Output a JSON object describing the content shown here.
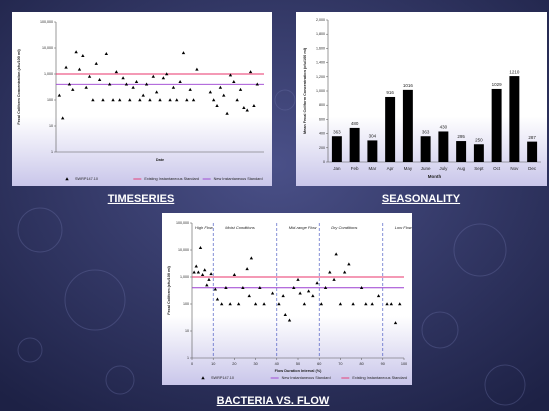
{
  "chart_data": [
    {
      "type": "scatter",
      "caption": "TIMESERIES",
      "xlabel": "Date",
      "ylabel": "Fecal Coliform Concentration (cfu/100 ml)",
      "log_y": true,
      "ylim": [
        1,
        100000
      ],
      "yticks": [
        1,
        10,
        100,
        {
          "value": 1000,
          "label": "1,000"
        },
        {
          "value": 10000,
          "label": "10,000"
        },
        {
          "value": 100000,
          "label": "100,000"
        }
      ],
      "xlim": [
        0,
        62
      ],
      "series": [
        {
          "name": "SWRP147.10",
          "color": "#000000",
          "x": [
            1,
            2,
            3,
            4,
            5,
            6,
            7,
            8,
            9,
            10,
            11,
            12,
            13,
            14,
            15,
            16,
            17,
            18,
            19,
            20,
            21,
            22,
            23,
            24,
            25,
            26,
            27,
            28,
            29,
            30,
            31,
            32,
            33,
            34,
            35,
            36,
            37,
            38,
            39,
            40,
            41,
            42,
            46,
            47,
            48,
            49,
            50,
            51,
            52,
            53,
            54,
            55,
            56,
            57,
            58,
            59,
            60
          ],
          "values": [
            150,
            20,
            1800,
            400,
            250,
            7000,
            1500,
            5000,
            300,
            800,
            100,
            2500,
            600,
            100,
            6000,
            400,
            100,
            1200,
            100,
            700,
            400,
            100,
            300,
            500,
            100,
            150,
            400,
            100,
            800,
            200,
            100,
            700,
            1000,
            100,
            300,
            100,
            500,
            6500,
            100,
            250,
            100,
            1500,
            200,
            100,
            60,
            300,
            150,
            30,
            900,
            500,
            100,
            250,
            50,
            40,
            1200,
            60,
            400
          ]
        }
      ],
      "reference_lines": [
        {
          "name": "Existing Instantaneous Standard",
          "color": "#e8336b",
          "value": 1000
        },
        {
          "name": "New Instantaneous Standard",
          "color": "#9b3fd1",
          "value": 400
        }
      ]
    },
    {
      "type": "bar",
      "caption": "SEASONALITY",
      "xlabel": "Month",
      "ylabel": "Mean Fecal Coliform Concentration (cfu/100 ml)",
      "categories": [
        "Jan",
        "Feb",
        "Mar",
        "Apr",
        "May",
        "June",
        "July",
        "Aug",
        "Sept",
        "Oct",
        "Nov",
        "Dec"
      ],
      "values": [
        363,
        480,
        304,
        916,
        1016,
        363,
        430,
        295,
        250,
        1029,
        1210,
        287
      ],
      "color": "#000000",
      "ylim": [
        0,
        2000
      ],
      "yticks": [
        0,
        200,
        400,
        600,
        800,
        {
          "value": 1000,
          "label": "1,000"
        },
        {
          "value": 1200,
          "label": "1,200"
        },
        {
          "value": 1400,
          "label": "1,400"
        },
        {
          "value": 1600,
          "label": "1,600"
        },
        {
          "value": 1800,
          "label": "1,800"
        },
        {
          "value": 2000,
          "label": "2,000"
        }
      ]
    },
    {
      "type": "scatter",
      "caption": "BACTERIA VS. FLOW",
      "xlabel": "Flow Duration Interval (%)",
      "ylabel": "Fecal Coliform (cfu/100 ml)",
      "log_y": true,
      "ylim": [
        1,
        100000
      ],
      "yticks": [
        1,
        10,
        100,
        {
          "value": 1000,
          "label": "1,000"
        },
        {
          "value": 10000,
          "label": "10,000"
        },
        {
          "value": 100000,
          "label": "100,000"
        }
      ],
      "xlim": [
        0,
        100
      ],
      "xticks": [
        0,
        10,
        20,
        30,
        40,
        50,
        60,
        70,
        80,
        90,
        100
      ],
      "zones": [
        {
          "label": "High Flow",
          "x": [
            0,
            10
          ]
        },
        {
          "label": "Moist Conditions",
          "x": [
            10,
            40
          ]
        },
        {
          "label": "Mid-range Flow",
          "x": [
            40,
            60
          ]
        },
        {
          "label": "Dry Conditions",
          "x": [
            60,
            90
          ]
        },
        {
          "label": "Low Flow",
          "x": [
            90,
            100
          ]
        }
      ],
      "series": [
        {
          "name": "SWRP147.10",
          "color": "#000000",
          "x": [
            1,
            2,
            3,
            4,
            5,
            6,
            7,
            8,
            9,
            11,
            12,
            14,
            16,
            18,
            20,
            22,
            24,
            26,
            27,
            28,
            30,
            32,
            34,
            38,
            41,
            43,
            44,
            46,
            48,
            50,
            51,
            53,
            55,
            57,
            59,
            61,
            63,
            65,
            67,
            68,
            70,
            72,
            74,
            76,
            80,
            82,
            85,
            88,
            92,
            94,
            96,
            98
          ],
          "values": [
            1500,
            2500,
            1500,
            12000,
            1200,
            1800,
            500,
            800,
            1300,
            350,
            150,
            100,
            400,
            100,
            1200,
            100,
            400,
            2000,
            200,
            5000,
            100,
            400,
            100,
            250,
            100,
            200,
            40,
            25,
            400,
            800,
            250,
            100,
            300,
            200,
            600,
            100,
            400,
            1500,
            800,
            7000,
            100,
            1500,
            3000,
            100,
            400,
            100,
            100,
            200,
            100,
            100,
            20,
            100
          ]
        }
      ],
      "reference_lines": [
        {
          "name": "New Instantaneous Standard",
          "color": "#9b3fd1",
          "value": 400
        },
        {
          "name": "Existing Instantaneous Standard",
          "color": "#e8336b",
          "value": 1000
        }
      ]
    }
  ]
}
